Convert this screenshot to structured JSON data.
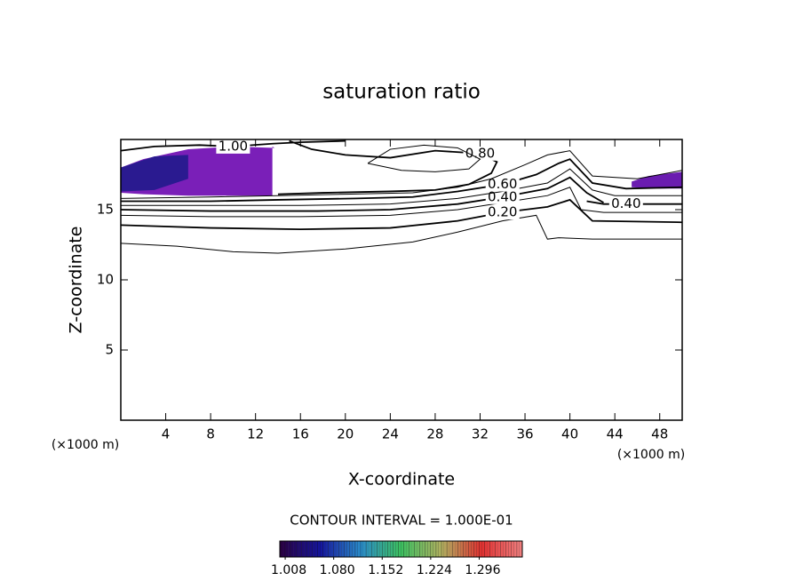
{
  "chart_data": {
    "type": "contour",
    "title": "saturation ratio",
    "x_label": "X-coordinate",
    "y_label": "Z-coordinate",
    "x_unit": "(×1000 m)",
    "x_unit_right": "(×1000 m)",
    "note": "CONTOUR INTERVAL = 1.000E-01",
    "xlim": [
      0,
      50
    ],
    "ylim": [
      0,
      20
    ],
    "xticks": [
      4,
      8,
      12,
      16,
      20,
      24,
      28,
      32,
      36,
      40,
      44,
      48
    ],
    "yticks": [
      5,
      10,
      15
    ],
    "line_color": "#000000",
    "contours": [
      {
        "level": 0.1,
        "x": [
          0,
          5,
          10,
          14,
          20,
          26,
          30,
          34,
          37,
          38,
          39,
          42,
          50
        ],
        "z": [
          12.6,
          12.4,
          12.0,
          11.9,
          12.2,
          12.7,
          13.4,
          14.2,
          14.6,
          12.9,
          13.0,
          12.9,
          12.9
        ]
      },
      {
        "level": {
          "value": 0.2,
          "label": "0.20"
        },
        "x": [
          0,
          8,
          16,
          24,
          30,
          34,
          38,
          40,
          42,
          50
        ],
        "z": [
          13.9,
          13.7,
          13.6,
          13.7,
          14.2,
          14.8,
          15.2,
          15.7,
          14.2,
          14.1
        ]
      },
      {
        "level": 0.3,
        "x": [
          0,
          8,
          16,
          24,
          30,
          34,
          38,
          40,
          41,
          43,
          50
        ],
        "z": [
          14.6,
          14.5,
          14.5,
          14.6,
          15.0,
          15.5,
          16.0,
          16.6,
          15.0,
          14.8,
          14.8
        ]
      },
      {
        "level": {
          "value": 0.4,
          "label": "0.40"
        },
        "x": [
          0,
          8,
          17.5,
          24,
          30,
          34,
          38,
          40,
          41.5,
          43
        ],
        "z": [
          15.0,
          14.9,
          14.9,
          15.0,
          15.4,
          15.9,
          16.5,
          17.3,
          16.2,
          15.5
        ]
      },
      {
        "level": {
          "value": 0.4,
          "label": "0.40"
        },
        "x": [
          41.5,
          43,
          45,
          47,
          50
        ],
        "z": [
          15.6,
          15.4,
          15.4,
          15.4,
          15.4
        ]
      },
      {
        "level": 0.5,
        "x": [
          0,
          8,
          16,
          24,
          30,
          34,
          38,
          40,
          42,
          44,
          50
        ],
        "z": [
          15.3,
          15.3,
          15.3,
          15.4,
          15.8,
          16.3,
          16.9,
          17.9,
          16.4,
          16.0,
          16.0
        ]
      },
      {
        "level": {
          "value": 0.6,
          "label": "0.60"
        },
        "x": [
          0,
          8,
          14,
          21,
          26,
          30,
          34,
          37,
          39,
          40,
          42,
          45,
          50
        ],
        "z": [
          15.6,
          15.6,
          15.7,
          15.8,
          15.9,
          16.3,
          16.8,
          17.5,
          18.3,
          18.6,
          16.9,
          16.5,
          16.6
        ]
      },
      {
        "level": 0.7,
        "x": [
          0,
          8,
          14,
          20,
          26,
          30,
          33,
          36,
          38,
          40,
          42,
          46,
          50
        ],
        "z": [
          15.8,
          15.9,
          16.0,
          16.1,
          16.2,
          16.6,
          17.2,
          18.2,
          18.9,
          19.2,
          17.4,
          17.2,
          17.8
        ]
      },
      {
        "level": {
          "value": 0.8,
          "label": "0.80"
        },
        "x": [
          14,
          18,
          24,
          28,
          31,
          33,
          33.5,
          32,
          28,
          24,
          20,
          17,
          16,
          15
        ],
        "z": [
          16.1,
          16.2,
          16.3,
          16.4,
          16.8,
          17.6,
          18.4,
          19.0,
          19.2,
          18.7,
          18.9,
          19.3,
          19.6,
          19.9
        ]
      },
      {
        "level": 0.9,
        "x": [
          22,
          25,
          28,
          31,
          32,
          30,
          27,
          24,
          22
        ],
        "z": [
          18.3,
          17.8,
          17.7,
          17.9,
          18.6,
          19.4,
          19.6,
          19.3,
          18.3
        ]
      },
      {
        "level": {
          "value": 1.0,
          "label": "1.00"
        },
        "x": [
          0,
          3,
          7,
          10,
          13.5,
          16,
          20
        ],
        "z": [
          19.2,
          19.5,
          19.6,
          19.5,
          19.7,
          19.8,
          19.9
        ]
      }
    ],
    "regions": [
      {
        "value": 1.03,
        "color": "#7a1fb8",
        "x": [
          0,
          2,
          6,
          10,
          13.5,
          13.5,
          13.7,
          10,
          6,
          2,
          0
        ],
        "z": [
          16.2,
          16.1,
          16.0,
          16.0,
          16.0,
          19.5,
          19.4,
          19.5,
          19.3,
          18.6,
          18.0
        ]
      },
      {
        "value": 1.01,
        "color": "#2a1a90",
        "x": [
          0,
          3,
          6,
          6,
          3,
          0
        ],
        "z": [
          16.3,
          16.4,
          17.2,
          18.9,
          18.8,
          18.0
        ]
      },
      {
        "value": 1.03,
        "color": "#6a1cb0",
        "x": [
          45.5,
          48,
          50,
          50,
          47,
          45.5
        ],
        "z": [
          16.6,
          16.5,
          16.5,
          17.7,
          17.4,
          17.0
        ]
      }
    ],
    "colorbar": {
      "clim": [
        1.0,
        1.36
      ],
      "colors": [
        "#2a0040",
        "#14149c",
        "#2a8ac8",
        "#3cc060",
        "#b0b060",
        "#e03030",
        "#f08080"
      ],
      "ticks": [
        1.008,
        {
          "value": 1.08,
          "label": "1.080"
        },
        1.152,
        1.224,
        1.296
      ]
    }
  }
}
